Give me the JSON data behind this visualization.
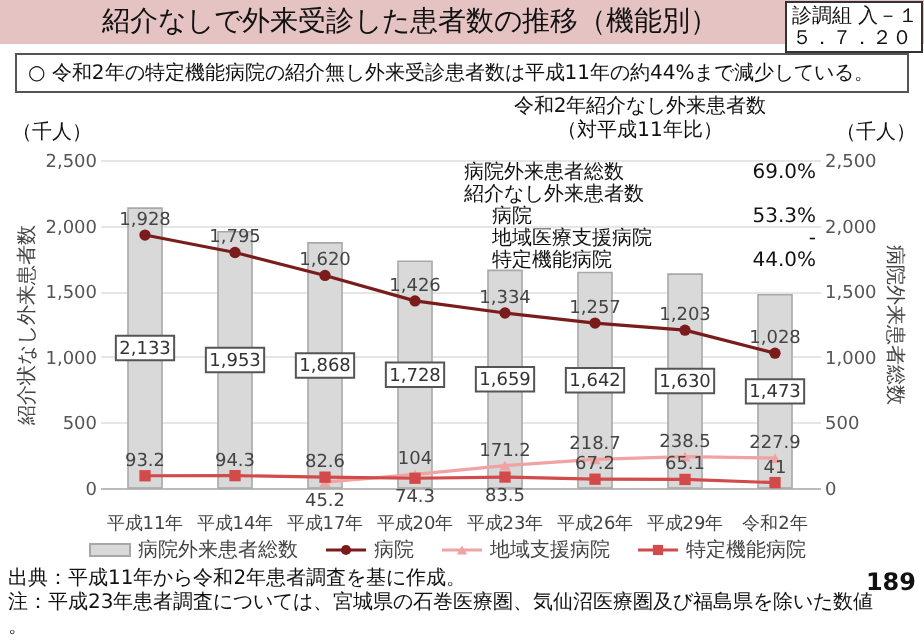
{
  "chart_data": {
    "type": "bar",
    "title": "紹介なしで外来受診した患者数の推移（機能別）",
    "subtitle": "○ 令和2年の特定機能病院の紹介無し外来受診患者数は平成11年の約44%まで減少している。",
    "categories": [
      "平成11年",
      "平成14年",
      "平成17年",
      "平成20年",
      "平成23年",
      "平成26年",
      "平成29年",
      "令和2年"
    ],
    "series": [
      {
        "name": "病院外来患者総数",
        "axis": "y2",
        "color": "#d9d9d9",
        "values": [
          2133,
          1953,
          1868,
          1728,
          1659,
          1642,
          1630,
          1473
        ],
        "value_labels": [
          "2,133",
          "1,953",
          "1,868",
          "1,728",
          "1,659",
          "1,642",
          "1,630",
          "1,473"
        ]
      },
      {
        "name": "病院",
        "type": "line",
        "marker": "circle",
        "color": "#7b1c1c",
        "values": [
          1928,
          1795,
          1620,
          1426,
          1334,
          1257,
          1203,
          1028
        ],
        "value_labels": [
          "1,928",
          "1,795",
          "1,620",
          "1,426",
          "1,334",
          "1,257",
          "1,203",
          "1,028"
        ]
      },
      {
        "name": "地域支援病院",
        "type": "line",
        "marker": "triangle",
        "color": "#f0a3a3",
        "values": [
          null,
          null,
          45.2,
          104,
          171.2,
          218.7,
          238.5,
          227.9
        ],
        "value_labels": [
          null,
          null,
          "45.2",
          "104",
          "171.2",
          "218.7",
          "238.5",
          "227.9"
        ]
      },
      {
        "name": "特定機能病院",
        "type": "line",
        "marker": "square",
        "color": "#d24a4a",
        "values": [
          93.2,
          94.3,
          82.6,
          74.3,
          83.5,
          67.2,
          65.1,
          41
        ],
        "value_labels": [
          "93.2",
          "94.3",
          "82.6",
          "74.3",
          "83.5",
          "67.2",
          "65.1",
          "41"
        ]
      }
    ],
    "ylabel": "紹介状なし外来患者数",
    "y2label": "病院外来患者総数",
    "ylim": [
      0,
      2500
    ],
    "yticks": [
      0,
      {
        "value": 500,
        "label": "500"
      },
      {
        "value": 1000,
        "label": "1,000"
      },
      {
        "value": 1500,
        "label": "1,500"
      },
      {
        "value": 2000,
        "label": "2,000"
      },
      {
        "value": 2500,
        "label": "2,500"
      }
    ],
    "y2lim": [
      0,
      2500
    ],
    "y2ticks": [
      0,
      {
        "value": 500,
        "label": "500"
      },
      {
        "value": 1000,
        "label": "1,000"
      },
      {
        "value": 1500,
        "label": "1,500"
      },
      {
        "value": 2000,
        "label": "2,000"
      },
      {
        "value": 2500,
        "label": "2,500"
      }
    ],
    "grid": "y",
    "legend": "bottom",
    "annotations": [
      "（千人）",
      "（千人）",
      "令和2年紹介なし外来患者数",
      "（対平成11年比）",
      "病院外来患者総数",
      "69.0%",
      "紹介なし外来患者数",
      "病院",
      "53.3%",
      "地域医療支援病院",
      "-",
      "特定機能病院",
      "44.0%",
      "診調組 入－１",
      "５．７．２０",
      "出典：平成11年から令和2年患者調査を基に作成。",
      "注：平成23年患者調査については、宮城県の石巻医療圏、気仙沼医療圏及び福島県を除いた数値。",
      "189"
    ]
  }
}
